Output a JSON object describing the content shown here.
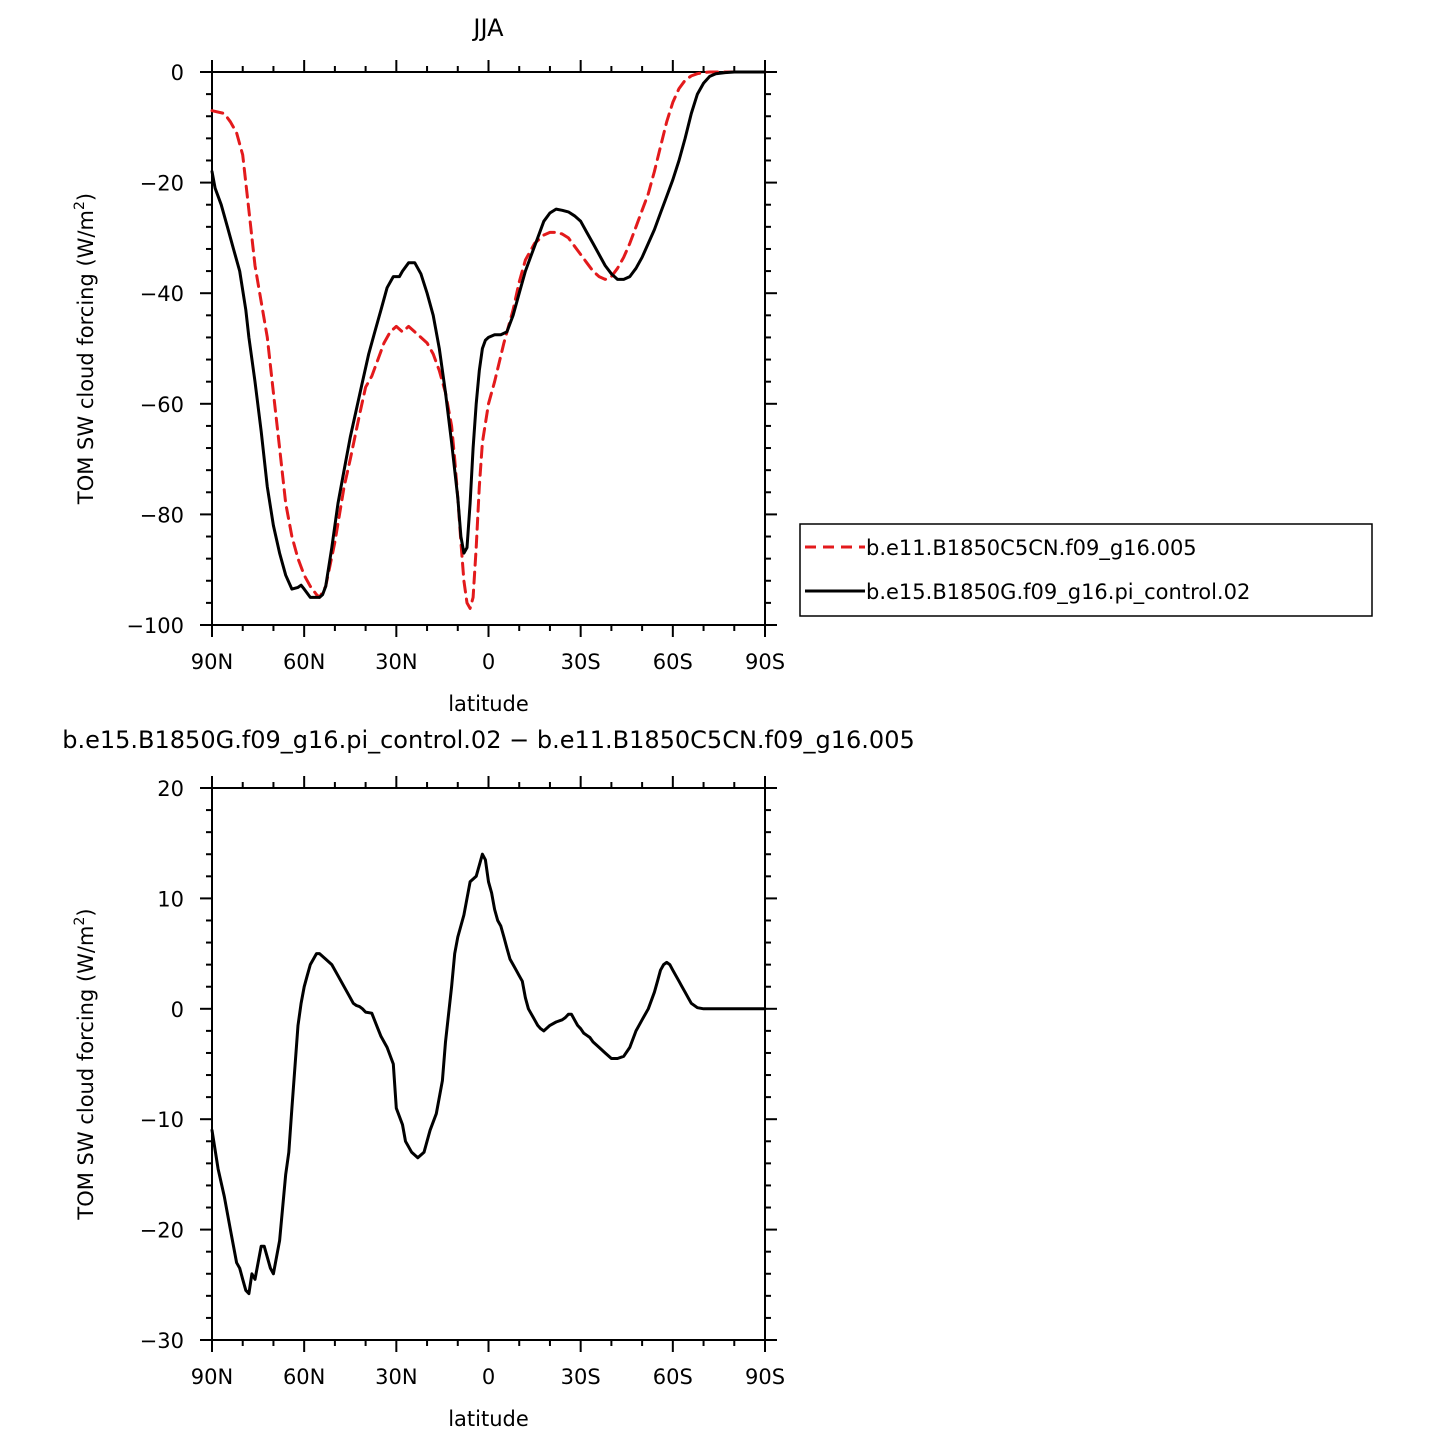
{
  "chart_data": [
    {
      "type": "line",
      "title": "JJA",
      "xlabel": "latitude",
      "ylabel_main": "TOM SW cloud forcing (W/m",
      "ylabel_sup": "2",
      "ylabel_close": ")",
      "xlim": [
        90,
        -90
      ],
      "ylim": [
        -100,
        0
      ],
      "xticks": [
        {
          "value": 90,
          "label": "90N"
        },
        {
          "value": 60,
          "label": "60N"
        },
        {
          "value": 30,
          "label": "30N"
        },
        {
          "value": 0,
          "label": "0"
        },
        {
          "value": -30,
          "label": "30S"
        },
        {
          "value": -60,
          "label": "60S"
        },
        {
          "value": -90,
          "label": "90S"
        }
      ],
      "yticks": [
        {
          "value": 0,
          "label": "0"
        },
        {
          "value": -20,
          "label": "−20"
        },
        {
          "value": -40,
          "label": "−40"
        },
        {
          "value": -60,
          "label": "−60"
        },
        {
          "value": -80,
          "label": "−80"
        },
        {
          "value": -100,
          "label": "−100"
        }
      ],
      "legend_position": "right",
      "series": [
        {
          "name": "b.e11.B1850C5CN.f09_g16.005",
          "color": "#e31a1c",
          "dash": true,
          "x": [
            90,
            86,
            84,
            82,
            80,
            78,
            76,
            72,
            70,
            68,
            66,
            64,
            62,
            60,
            58,
            56,
            55,
            53,
            50,
            47,
            45,
            42,
            40,
            38,
            36,
            34,
            32,
            30,
            28,
            26,
            24,
            22,
            20,
            18,
            16,
            14,
            12,
            11,
            10,
            9,
            8,
            7,
            6,
            5,
            4,
            3,
            2,
            0,
            -2,
            -5,
            -8,
            -10,
            -12,
            -15,
            -18,
            -20,
            -22,
            -24,
            -26,
            -28,
            -30,
            -32,
            -34,
            -36,
            -38,
            -40,
            -42,
            -44,
            -46,
            -48,
            -50,
            -52,
            -54,
            -56,
            -58,
            -60,
            -62,
            -64,
            -66,
            -68,
            -70,
            -72,
            -75,
            -80,
            -85,
            -90
          ],
          "y": [
            -7,
            -7.5,
            -9,
            -11,
            -15,
            -25,
            -35,
            -48,
            -58,
            -68,
            -78,
            -84,
            -88,
            -91,
            -93,
            -94.5,
            -95,
            -93,
            -85,
            -75,
            -70,
            -62,
            -57,
            -55,
            -52,
            -49,
            -47,
            -46,
            -47,
            -46,
            -47,
            -48,
            -49,
            -51,
            -54,
            -58,
            -64,
            -70,
            -77,
            -85,
            -92,
            -96,
            -97,
            -95,
            -86,
            -75,
            -67,
            -60,
            -56,
            -49,
            -43,
            -38,
            -34,
            -31,
            -29.5,
            -29,
            -29,
            -29.3,
            -30,
            -31.5,
            -33,
            -34.5,
            -36,
            -37,
            -37.5,
            -37,
            -35.5,
            -33.5,
            -31,
            -28,
            -25,
            -22,
            -18,
            -13.5,
            -9,
            -5.5,
            -3,
            -1.5,
            -0.7,
            -0.3,
            -0.1,
            0,
            0,
            0,
            0,
            0
          ]
        },
        {
          "name": "b.e15.B1850G.f09_g16.pi_control.02",
          "color": "#000000",
          "dash": false,
          "x": [
            90,
            89,
            87,
            85,
            83,
            81,
            79,
            78,
            76,
            74,
            72,
            70,
            68,
            66,
            64,
            62,
            61,
            60,
            58,
            56,
            55,
            54,
            53,
            51,
            49,
            47,
            45,
            43,
            41,
            39,
            37,
            35,
            33,
            31,
            29,
            28,
            26,
            24,
            22,
            20,
            18,
            16,
            14,
            12,
            10,
            9,
            8,
            7,
            6,
            5,
            4,
            3,
            2,
            1,
            0,
            -2,
            -4,
            -6,
            -8,
            -10,
            -12,
            -14,
            -16,
            -18,
            -20,
            -22,
            -24,
            -26,
            -28,
            -30,
            -32,
            -34,
            -36,
            -38,
            -40,
            -42,
            -44,
            -46,
            -48,
            -50,
            -52,
            -54,
            -56,
            -58,
            -60,
            -62,
            -64,
            -66,
            -68,
            -70,
            -72,
            -74,
            -77,
            -80,
            -85,
            -90
          ],
          "y": [
            -18,
            -21,
            -24,
            -28,
            -32,
            -36,
            -43,
            -48,
            -56,
            -65,
            -75,
            -82,
            -87,
            -91,
            -93.5,
            -93.2,
            -92.8,
            -93.5,
            -95,
            -95,
            -95,
            -94.5,
            -93,
            -86,
            -78,
            -72,
            -66,
            -61,
            -56,
            -51,
            -47,
            -43,
            -39,
            -37,
            -37,
            -36,
            -34.5,
            -34.5,
            -36.5,
            -40,
            -44,
            -50,
            -58,
            -67,
            -77,
            -84,
            -87,
            -86,
            -78,
            -68,
            -60,
            -54,
            -50,
            -48.5,
            -48,
            -47.5,
            -47.5,
            -47,
            -44,
            -40,
            -36,
            -33,
            -30,
            -27,
            -25.5,
            -24.8,
            -25,
            -25.3,
            -26,
            -27,
            -29,
            -31,
            -33,
            -35,
            -36.5,
            -37.5,
            -37.5,
            -37,
            -35.5,
            -33.5,
            -31,
            -28.5,
            -25.5,
            -22.5,
            -19.5,
            -16,
            -12,
            -7.5,
            -4,
            -2,
            -0.8,
            -0.3,
            -0.1,
            0,
            0,
            0
          ]
        }
      ]
    },
    {
      "type": "line",
      "title": "b.e15.B1850G.f09_g16.pi_control.02 − b.e11.B1850C5CN.f09_g16.005",
      "xlabel": "latitude",
      "ylabel_main": "TOM SW cloud forcing (W/m",
      "ylabel_sup": "2",
      "ylabel_close": ")",
      "xlim": [
        90,
        -90
      ],
      "ylim": [
        -30,
        20
      ],
      "xticks": [
        {
          "value": 90,
          "label": "90N"
        },
        {
          "value": 60,
          "label": "60N"
        },
        {
          "value": 30,
          "label": "30N"
        },
        {
          "value": 0,
          "label": "0"
        },
        {
          "value": -30,
          "label": "30S"
        },
        {
          "value": -60,
          "label": "60S"
        },
        {
          "value": -90,
          "label": "90S"
        }
      ],
      "yticks": [
        {
          "value": 20,
          "label": "20"
        },
        {
          "value": 10,
          "label": "10"
        },
        {
          "value": 0,
          "label": "0"
        },
        {
          "value": -10,
          "label": "−10"
        },
        {
          "value": -20,
          "label": "−20"
        },
        {
          "value": -30,
          "label": "−30"
        }
      ],
      "series": [
        {
          "name": "",
          "color": "#000000",
          "dash": false,
          "x": [
            90,
            88,
            86,
            84,
            83,
            82,
            81,
            80,
            79,
            78,
            77,
            76,
            75,
            74,
            73,
            72,
            71,
            70,
            68,
            66,
            65,
            64,
            62,
            61,
            60,
            59,
            58,
            57,
            56,
            55,
            53,
            51,
            49,
            47,
            45,
            44,
            43,
            42,
            41,
            40,
            38,
            36,
            35,
            33,
            31,
            30,
            28,
            27,
            26,
            25,
            23,
            21,
            19,
            17,
            15,
            14,
            12,
            11,
            10,
            8,
            7,
            6,
            4,
            3,
            2,
            1,
            0,
            -1,
            -2,
            -3,
            -4,
            -5,
            -6,
            -7,
            -8,
            -9,
            -10,
            -11,
            -12,
            -13,
            -14,
            -15,
            -16,
            -17,
            -18,
            -20,
            -22,
            -24,
            -25,
            -26,
            -27,
            -28,
            -29,
            -30,
            -31,
            -32,
            -33,
            -34,
            -36,
            -38,
            -40,
            -42,
            -44,
            -46,
            -48,
            -50,
            -52,
            -54,
            -55,
            -56,
            -57,
            -58,
            -59,
            -60,
            -61,
            -62,
            -63,
            -64,
            -65,
            -66,
            -68,
            -70,
            -72,
            -75,
            -80,
            -85,
            -90
          ],
          "y": [
            -11,
            -14.5,
            -17,
            -20,
            -21.5,
            -23,
            -23.5,
            -24.5,
            -25.5,
            -25.8,
            -24,
            -24.5,
            -23,
            -21.5,
            -21.5,
            -22.5,
            -23.5,
            -24,
            -21,
            -15,
            -13,
            -9,
            -1.5,
            0.5,
            2,
            3,
            4,
            4.5,
            5,
            5,
            4.5,
            4,
            3,
            2,
            1,
            0.5,
            0.3,
            0.2,
            0,
            -0.3,
            -0.4,
            -1.8,
            -2.5,
            -3.5,
            -5,
            -9,
            -10.5,
            -12,
            -12.5,
            -13,
            -13.5,
            -13,
            -11,
            -9.5,
            -6.5,
            -3,
            2,
            5,
            6.5,
            8.5,
            10,
            11.5,
            12,
            13,
            14,
            13.5,
            11.5,
            10.5,
            9,
            8,
            7.5,
            6.5,
            5.5,
            4.5,
            4,
            3.5,
            3,
            2.5,
            1,
            0,
            -0.5,
            -1,
            -1.5,
            -1.8,
            -2,
            -1.5,
            -1.2,
            -1,
            -0.8,
            -0.5,
            -0.5,
            -1,
            -1.5,
            -1.8,
            -2.2,
            -2.4,
            -2.6,
            -3,
            -3.5,
            -4,
            -4.5,
            -4.5,
            -4.3,
            -3.5,
            -2,
            -1,
            0,
            1.5,
            2.5,
            3.5,
            4,
            4.2,
            4,
            3.5,
            3,
            2.5,
            2,
            1.5,
            1,
            0.5,
            0.1,
            0,
            0,
            0,
            0,
            0,
            0
          ]
        }
      ]
    }
  ]
}
